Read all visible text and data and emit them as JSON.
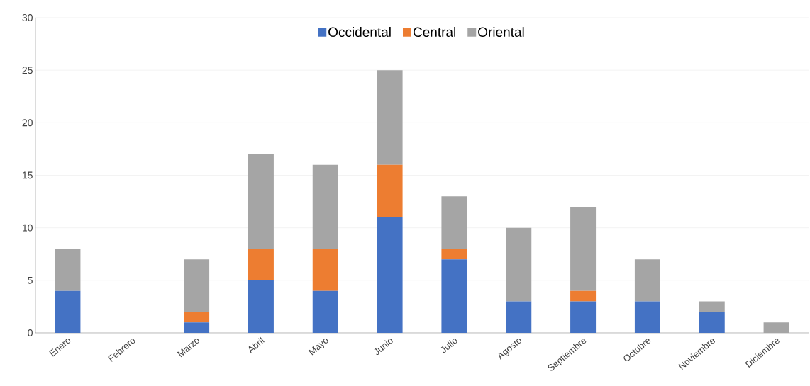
{
  "chart_data": {
    "type": "bar",
    "stacked": true,
    "categories": [
      "Enero",
      "Febrero",
      "Marzo",
      "Abril",
      "Mayo",
      "Junio",
      "Julio",
      "Agosto",
      "Septiembre",
      "Octubre",
      "Noviembre",
      "Diciembre"
    ],
    "series": [
      {
        "name": "Occidental",
        "color": "#4472c4",
        "values": [
          4,
          0,
          1,
          5,
          4,
          11,
          7,
          3,
          3,
          3,
          2,
          0
        ]
      },
      {
        "name": "Central",
        "color": "#ed7d31",
        "values": [
          0,
          0,
          1,
          3,
          4,
          5,
          1,
          0,
          1,
          0,
          0,
          0
        ]
      },
      {
        "name": "Oriental",
        "color": "#a5a5a5",
        "values": [
          4,
          0,
          5,
          9,
          8,
          9,
          5,
          7,
          8,
          4,
          1,
          1
        ]
      }
    ],
    "ylim": [
      0,
      30
    ],
    "yticks": [
      0,
      5,
      10,
      15,
      20,
      25,
      30
    ],
    "grid": "y",
    "legend": "top"
  }
}
